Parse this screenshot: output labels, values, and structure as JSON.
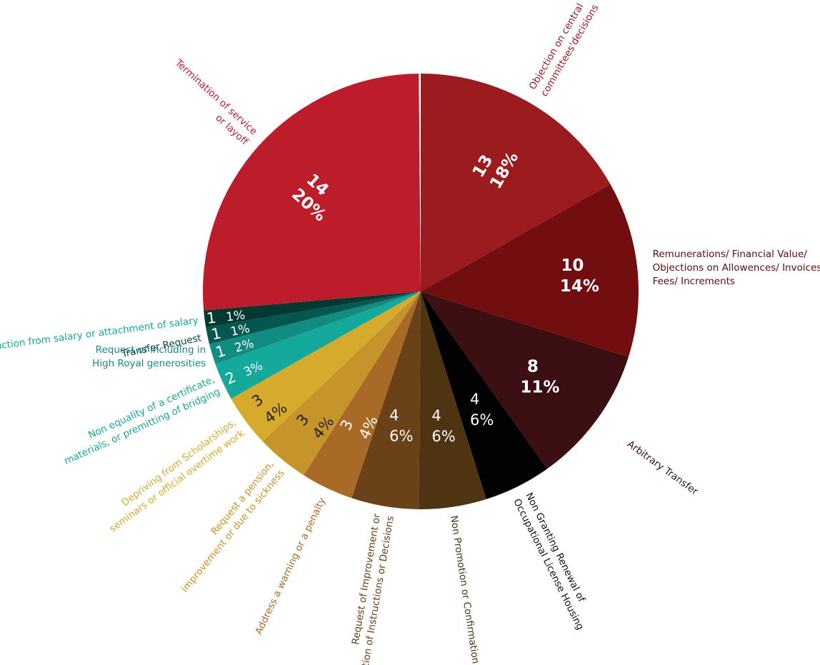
{
  "chart_data": {
    "type": "pie",
    "title": "",
    "start_angle_deg": 0,
    "direction": "clockwise",
    "slices": [
      {
        "label": [
          "Objection on central",
          "committees'decisions"
        ],
        "value": 13,
        "percent": "18%",
        "color": "#9b1b1f",
        "label_color": "#9b1b1f",
        "inner_text_color": "#ffffff",
        "count_text": "13"
      },
      {
        "label": [
          "Remunerations/ Financial Value/",
          "Objections on Allowences/ Invoices/",
          "Fees/ Increments"
        ],
        "value": 10,
        "percent": "14%",
        "color": "#720d10",
        "label_color": "#5e0b0e",
        "inner_text_color": "#ffffff",
        "count_text": "10"
      },
      {
        "label": [
          "Arbitrary Transfer"
        ],
        "value": 8,
        "percent": "11%",
        "color": "#3c1013",
        "label_color": "#3c1013",
        "inner_text_color": "#ffffff",
        "count_text": "8"
      },
      {
        "label": [
          "Non Granting Renewal of",
          "Occupational License Housing"
        ],
        "value": 4,
        "percent": "6%",
        "color": "#020202",
        "label_color": "#111111",
        "inner_text_color": "#ffffff",
        "count_text": "4"
      },
      {
        "label": [
          "Non Promotion or Confirmation"
        ],
        "value": 4,
        "percent": "6%",
        "color": "#4e3411",
        "label_color": "#4e3411",
        "inner_text_color": "#ffffff",
        "count_text": "4"
      },
      {
        "label": [
          "Request of Improvement or",
          "Execution of Instructions or Decisions"
        ],
        "value": 4,
        "percent": "6%",
        "color": "#6a4118",
        "label_color": "#6a4118",
        "inner_text_color": "#ffffff",
        "count_text": "4"
      },
      {
        "label": [
          "Address a warning or a penalty"
        ],
        "value": 3,
        "percent": "4%",
        "color": "#a86a26",
        "label_color": "#a86a26",
        "inner_text_color": "#ffffff",
        "count_text": "3"
      },
      {
        "label": [
          "Request a pension,",
          "improvement or due to sickness"
        ],
        "value": 3,
        "percent": "4%",
        "color": "#c5952b",
        "label_color": "#c5952b",
        "inner_text_color": "#222222",
        "count_text": "3"
      },
      {
        "label": [
          "Depriving from Scholarships,",
          "seminars or official overtime work"
        ],
        "value": 3,
        "percent": "4%",
        "color": "#d6aa2b",
        "label_color": "#d6aa2b",
        "inner_text_color": "#222222",
        "count_text": "3"
      },
      {
        "label": [
          "Non equality of a certificate,",
          "materials, or premitting of bridging"
        ],
        "value": 2,
        "percent": "3%",
        "color": "#14a99a",
        "label_color": "#14a99a",
        "inner_text_color": "#ffffff",
        "count_text": "2"
      },
      {
        "label": [
          "Request of including in",
          "High Royal generosities"
        ],
        "value": 1,
        "percent": "2%",
        "color": "#128c80",
        "label_color": "#128c80",
        "inner_text_color": "#ffffff",
        "count_text": "1"
      },
      {
        "label": [
          "Transfer Request"
        ],
        "value": 1,
        "percent": "1%",
        "color": "#03574e",
        "label_color": "#03463f",
        "inner_text_color": "#ffffff",
        "count_text": "1"
      },
      {
        "label": [
          "Deduction from salary or attachment of salary"
        ],
        "value": 1,
        "percent": "1%",
        "color": "#043831",
        "label_color": "#14a99a",
        "inner_text_color": "#ffffff",
        "count_text": "1"
      },
      {
        "label": [
          "Termination of service",
          "or layoff"
        ],
        "value": 14,
        "percent": "20%",
        "color": "#bd1c2b",
        "label_color": "#bd1c2b",
        "inner_text_color": "#ffffff",
        "count_text": "14"
      }
    ]
  }
}
